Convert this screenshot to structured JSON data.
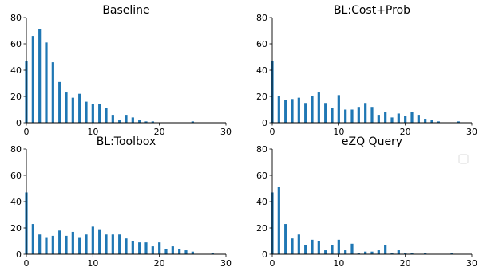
{
  "chart_data": [
    {
      "type": "bar",
      "title": "Baseline",
      "xlim": [
        0,
        30
      ],
      "ylim": [
        0,
        80
      ],
      "xticks": [
        0,
        10,
        20,
        30
      ],
      "yticks": [
        0,
        20,
        40,
        60,
        80
      ],
      "color": "#1f77b4",
      "x": [
        0,
        1,
        2,
        3,
        4,
        5,
        6,
        7,
        8,
        9,
        10,
        11,
        12,
        13,
        14,
        15,
        16,
        17,
        18,
        19,
        20,
        21,
        22,
        23,
        24,
        25,
        26,
        27,
        28,
        29
      ],
      "values": [
        47,
        66,
        71,
        61,
        46,
        31,
        23,
        19,
        22,
        16,
        14,
        14,
        11,
        6,
        2,
        6,
        4,
        2,
        1,
        1,
        0,
        0,
        0,
        0,
        0,
        1,
        0,
        0,
        0,
        0
      ]
    },
    {
      "type": "bar",
      "title": "BL:Cost+Prob",
      "xlim": [
        0,
        30
      ],
      "ylim": [
        0,
        80
      ],
      "xticks": [
        0,
        10,
        20,
        30
      ],
      "yticks": [
        0,
        20,
        40,
        60,
        80
      ],
      "color": "#1f77b4",
      "x": [
        0,
        1,
        2,
        3,
        4,
        5,
        6,
        7,
        8,
        9,
        10,
        11,
        12,
        13,
        14,
        15,
        16,
        17,
        18,
        19,
        20,
        21,
        22,
        23,
        24,
        25,
        26,
        27,
        28,
        29
      ],
      "values": [
        47,
        20,
        17,
        18,
        19,
        15,
        20,
        23,
        15,
        11,
        21,
        10,
        10,
        12,
        15,
        12,
        6,
        8,
        4,
        7,
        5,
        8,
        6,
        3,
        2,
        1,
        0,
        0,
        1,
        0
      ]
    },
    {
      "type": "bar",
      "title": "BL:Toolbox",
      "xlim": [
        0,
        30
      ],
      "ylim": [
        0,
        80
      ],
      "xticks": [
        0,
        10,
        20,
        30
      ],
      "yticks": [
        0,
        20,
        40,
        60,
        80
      ],
      "color": "#1f77b4",
      "x": [
        0,
        1,
        2,
        3,
        4,
        5,
        6,
        7,
        8,
        9,
        10,
        11,
        12,
        13,
        14,
        15,
        16,
        17,
        18,
        19,
        20,
        21,
        22,
        23,
        24,
        25,
        26,
        27,
        28,
        29
      ],
      "values": [
        47,
        23,
        15,
        13,
        14,
        18,
        14,
        17,
        13,
        15,
        21,
        19,
        15,
        15,
        15,
        12,
        10,
        9,
        9,
        6,
        9,
        4,
        6,
        4,
        3,
        2,
        0,
        0,
        1,
        0
      ]
    },
    {
      "type": "bar",
      "title": "eZQ Query",
      "xlim": [
        0,
        30
      ],
      "ylim": [
        0,
        80
      ],
      "xticks": [
        0,
        10,
        20,
        30
      ],
      "yticks": [
        0,
        20,
        40,
        60,
        80
      ],
      "color": "#1f77b4",
      "legend": "top-right",
      "x": [
        0,
        1,
        2,
        3,
        4,
        5,
        6,
        7,
        8,
        9,
        10,
        11,
        12,
        13,
        14,
        15,
        16,
        17,
        18,
        19,
        20,
        21,
        22,
        23,
        24,
        25,
        26,
        27,
        28,
        29
      ],
      "values": [
        47,
        51,
        23,
        12,
        15,
        7,
        11,
        10,
        3,
        7,
        11,
        3,
        8,
        1,
        2,
        2,
        3,
        7,
        1,
        3,
        1,
        1,
        0,
        1,
        0,
        0,
        0,
        1,
        0,
        0
      ]
    }
  ]
}
